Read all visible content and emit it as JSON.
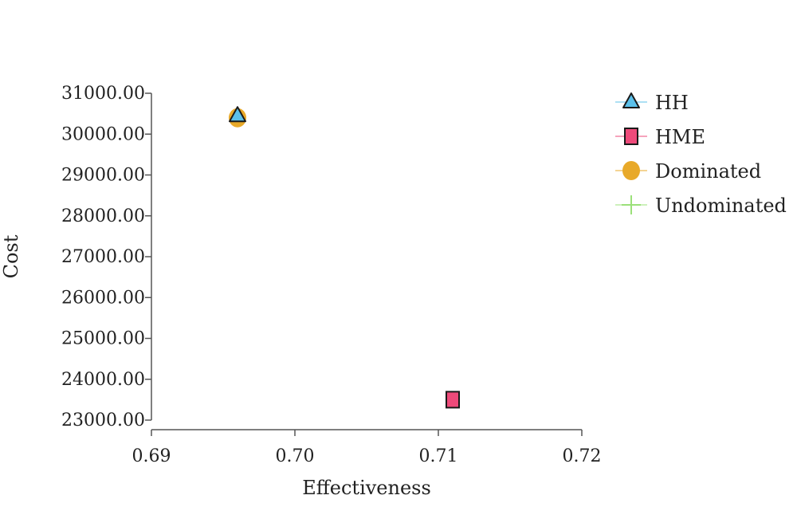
{
  "chart_data": {
    "type": "scatter",
    "xlabel": "Effectiveness",
    "ylabel": "Cost",
    "xlim": [
      0.69,
      0.72
    ],
    "ylim": [
      23000,
      31000
    ],
    "x_ticks": [
      "0.69",
      "0.70",
      "0.71",
      "0.72"
    ],
    "y_ticks": [
      "23000.00",
      "24000.00",
      "25000.00",
      "26000.00",
      "27000.00",
      "28000.00",
      "29000.00",
      "30000.00",
      "31000.00"
    ],
    "grid": false,
    "legend_position": "right",
    "series": [
      {
        "name": "HH",
        "marker": "triangle",
        "color": "#5bc0ea",
        "points": [
          {
            "x": 0.696,
            "y": 30450
          }
        ]
      },
      {
        "name": "HME",
        "marker": "square",
        "color": "#ee4a7a",
        "points": [
          {
            "x": 0.711,
            "y": 23500
          }
        ]
      },
      {
        "name": "Dominated",
        "marker": "circle",
        "color": "#e8a929",
        "points": [
          {
            "x": 0.696,
            "y": 30400
          }
        ]
      },
      {
        "name": "Undominated",
        "marker": "plus",
        "color": "#9be07a",
        "points": []
      }
    ]
  }
}
